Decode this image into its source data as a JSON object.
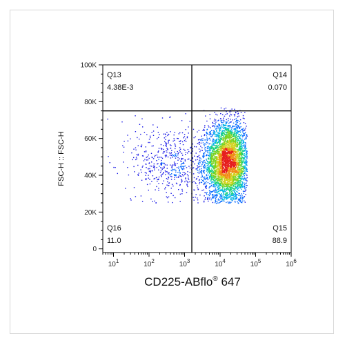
{
  "chart_data": {
    "type": "scatter",
    "subtype": "flow-cytometry-density-dot-plot",
    "xlabel": "CD225-ABflo",
    "xlabel_superscript": "®",
    "xlabel_suffix": " 647",
    "ylabel": "FSC-H :: FSC-H",
    "x_scale": "log",
    "xlim": [
      5,
      1000000
    ],
    "x_ticks": [
      {
        "value": 10,
        "base": "10",
        "exp": "1"
      },
      {
        "value": 100,
        "base": "10",
        "exp": "2"
      },
      {
        "value": 1000,
        "base": "10",
        "exp": "3"
      },
      {
        "value": 10000,
        "base": "10",
        "exp": "4"
      },
      {
        "value": 100000,
        "base": "10",
        "exp": "5"
      },
      {
        "value": 1000000,
        "base": "10",
        "exp": "6"
      }
    ],
    "y_scale": "linear",
    "ylim": [
      -2000,
      100000
    ],
    "y_ticks": [
      {
        "value": 0,
        "label": "0"
      },
      {
        "value": 20000,
        "label": "20K"
      },
      {
        "value": 40000,
        "label": "40K"
      },
      {
        "value": 60000,
        "label": "60K"
      },
      {
        "value": 80000,
        "label": "80K"
      },
      {
        "value": 100000,
        "label": "100K"
      }
    ],
    "gate": {
      "x": 1600,
      "y": 75000
    },
    "quadrants": [
      {
        "id": "Q13",
        "name": "Q13",
        "percent": "4.38E-3",
        "position": "top-left"
      },
      {
        "id": "Q14",
        "name": "Q14",
        "percent": "0.070",
        "position": "top-right"
      },
      {
        "id": "Q15",
        "name": "Q15",
        "percent": "88.9",
        "position": "bottom-right"
      },
      {
        "id": "Q16",
        "name": "Q16",
        "percent": "11.0",
        "position": "bottom-left"
      }
    ],
    "populations": [
      {
        "center_log10_x": 4.2,
        "center_y": 47000,
        "spread_log10_x": 0.32,
        "spread_y": 11000,
        "weight": 0.889
      },
      {
        "center_log10_x": 2.6,
        "center_y": 47000,
        "spread_log10_x": 0.55,
        "spread_y": 11000,
        "weight": 0.11
      }
    ],
    "density_colors": [
      "#1a1ae6",
      "#0066ff",
      "#00b4e6",
      "#19d27a",
      "#7ad21e",
      "#d2d21e",
      "#f08c14",
      "#e61e1e"
    ],
    "grid": false,
    "legend": "none"
  }
}
